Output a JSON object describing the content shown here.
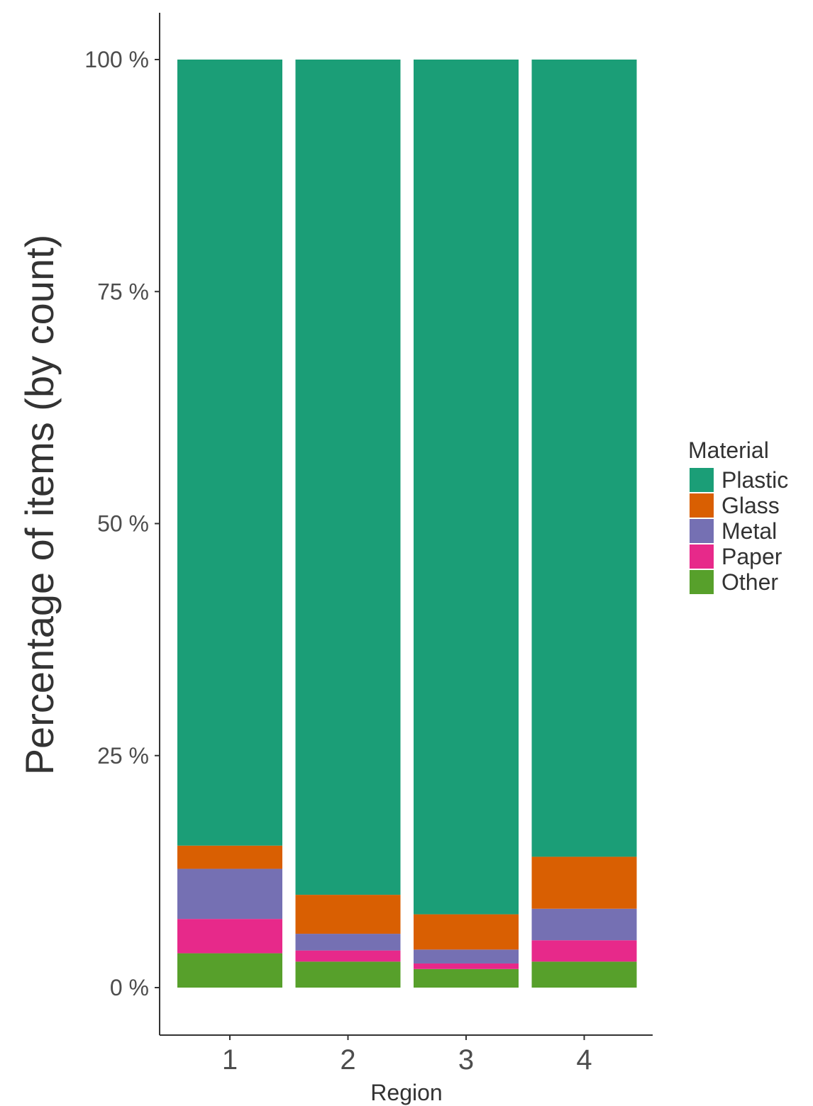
{
  "chart_data": {
    "type": "bar",
    "stacked": true,
    "categories": [
      "1",
      "2",
      "3",
      "4"
    ],
    "xlabel": "Region",
    "ylabel": "Percentage of items (by count)",
    "ylim": [
      0,
      100
    ],
    "yticks": [
      0,
      25,
      50,
      75,
      100
    ],
    "ytick_labels": [
      "0 %",
      "25 %",
      "50 %",
      "75 %",
      "100 %"
    ],
    "legend_title": "Material",
    "legend_position": "right",
    "grid": false,
    "series": [
      {
        "name": "Other",
        "color": "#57a02b",
        "values": [
          3.7,
          2.8,
          2.0,
          2.8
        ]
      },
      {
        "name": "Paper",
        "color": "#e7298a",
        "values": [
          3.7,
          1.2,
          0.6,
          2.3
        ]
      },
      {
        "name": "Metal",
        "color": "#7570b3",
        "values": [
          5.4,
          1.8,
          1.5,
          3.4
        ]
      },
      {
        "name": "Glass",
        "color": "#d95f02",
        "values": [
          2.5,
          4.2,
          3.8,
          5.6
        ]
      },
      {
        "name": "Plastic",
        "color": "#1b9e77",
        "values": [
          84.7,
          90.0,
          92.1,
          85.9
        ]
      }
    ],
    "legend_order": [
      "Plastic",
      "Glass",
      "Metal",
      "Paper",
      "Other"
    ]
  }
}
